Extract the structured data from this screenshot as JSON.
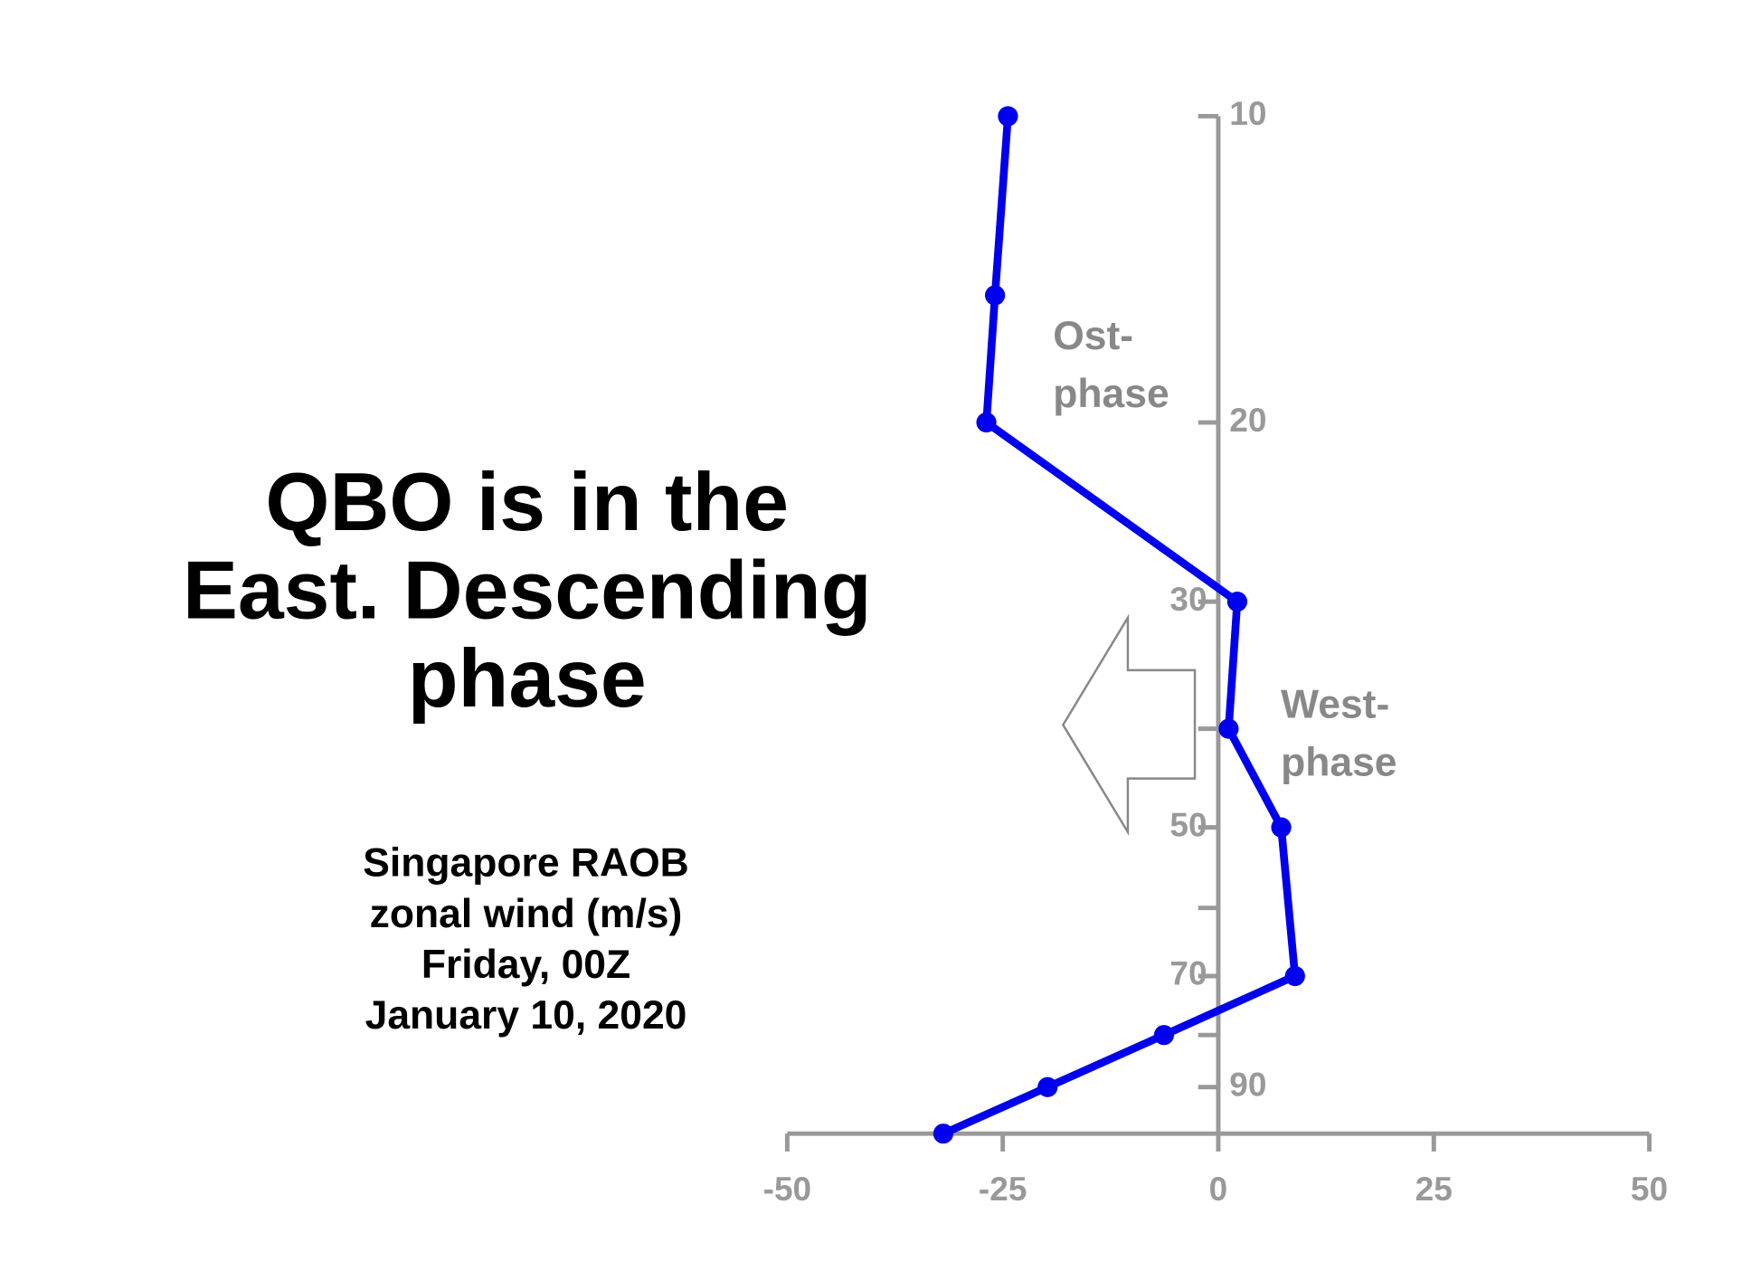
{
  "chart_data": {
    "type": "line",
    "title": [
      "QBO is in the",
      "East. Descending",
      "phase"
    ],
    "subtitle": [
      "Singapore RAOB",
      "zonal wind (m/s)",
      "Friday, 00Z",
      "January 10, 2020"
    ],
    "annotations": [
      [
        "Ost-",
        "phase"
      ],
      [
        "West-",
        "phase"
      ]
    ],
    "levels": [
      10,
      15,
      20,
      30,
      40,
      50,
      70,
      80,
      90,
      100
    ],
    "series": [
      {
        "color": "#0000ee",
        "values": [
          -24.4,
          -25.9,
          -26.9,
          2.2,
          1.2,
          7.3,
          8.9,
          -6.3,
          -19.8,
          -31.9
        ]
      }
    ],
    "xlim": [
      -50,
      50
    ],
    "xticks": [
      -50,
      -25,
      0,
      25,
      50
    ],
    "ylim": [
      10,
      100
    ],
    "yticks": [
      10,
      20,
      30,
      50,
      70,
      90
    ],
    "minor_yticks": [
      40,
      60,
      80
    ],
    "ylog": true,
    "yinverted": true
  }
}
